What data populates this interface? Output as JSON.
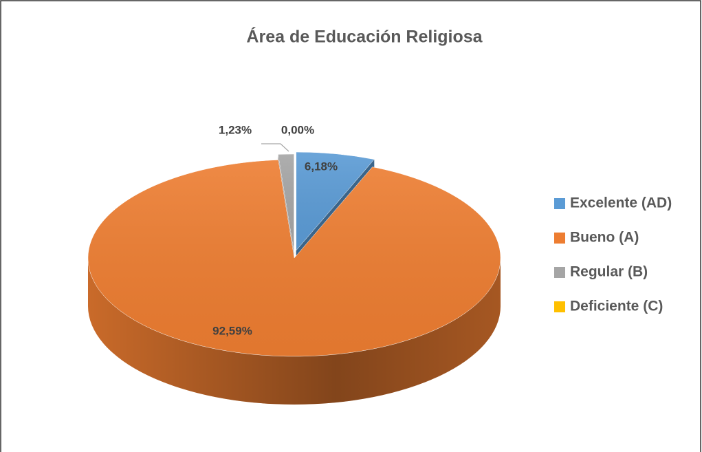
{
  "chart_data": {
    "type": "pie3d",
    "title": "Área de Educación Religiosa",
    "categories": [
      "Excelente (AD)",
      "Bueno (A)",
      "Regular (B)",
      "Deficiente (C)"
    ],
    "values": [
      6.18,
      92.59,
      1.23,
      0
    ],
    "value_labels": [
      "6,18%",
      "92,59%",
      "1,23%",
      "0,00%"
    ],
    "colors": [
      "#5b9bd5",
      "#ed7d31",
      "#a5a5a5",
      "#ffc000"
    ],
    "legend": "right"
  }
}
